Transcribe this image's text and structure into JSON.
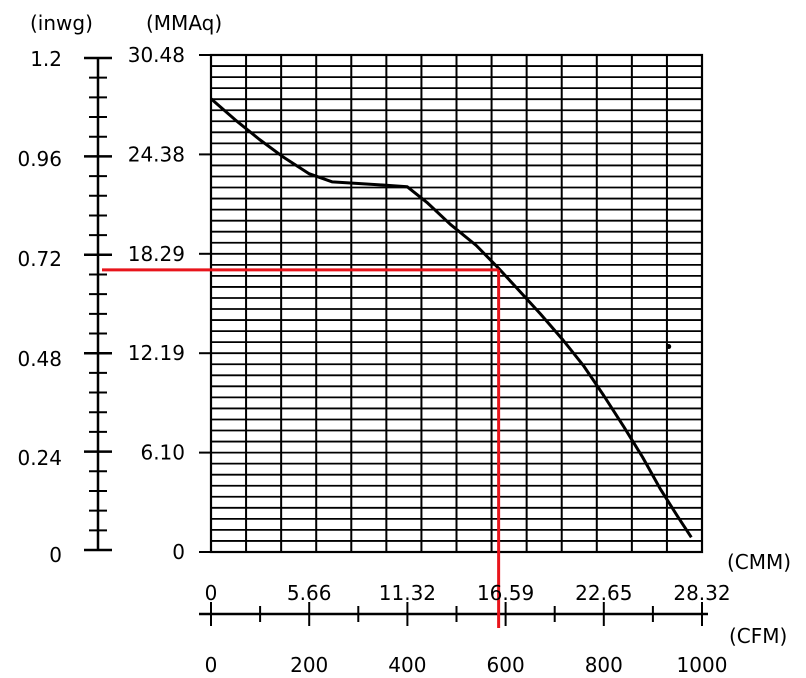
{
  "chart_data": {
    "type": "line",
    "title": "",
    "axes": {
      "y_primary": {
        "unit": "(MMAq)",
        "ticks": [
          "0",
          "6.10",
          "12.19",
          "18.29",
          "24.38",
          "30.48"
        ],
        "range": [
          0,
          30.48
        ]
      },
      "y_secondary": {
        "unit": "(inwg)",
        "ticks": [
          "0",
          "0.24",
          "0.48",
          "0.72",
          "0.96",
          "1.2"
        ],
        "range": [
          0,
          1.2
        ]
      },
      "x_primary": {
        "unit": "(CMM)",
        "ticks": [
          "0",
          "5.66",
          "11.32",
          "16.59",
          "22.65",
          "28.32"
        ],
        "range": [
          0,
          28.32
        ]
      },
      "x_secondary": {
        "unit": "(CFM)",
        "ticks": [
          "0",
          "200",
          "400",
          "600",
          "800",
          "1000"
        ],
        "range": [
          0,
          1000
        ]
      }
    },
    "grid": true,
    "series": [
      {
        "color": "#000000",
        "x": [
          0,
          1.4,
          2.8,
          4.2,
          5.66,
          7.0,
          8.5,
          10.0,
          11.32,
          12.5,
          13.8,
          15.3,
          16.59,
          17.8,
          19.0,
          20.3,
          21.5,
          22.65,
          23.8,
          24.9,
          25.9,
          26.9,
          27.7
        ],
        "y": [
          27.8,
          26.5,
          25.3,
          24.2,
          23.2,
          22.7,
          22.6,
          22.5,
          22.4,
          21.4,
          20.1,
          18.8,
          17.4,
          16.0,
          14.6,
          13.0,
          11.4,
          9.6,
          7.7,
          5.8,
          3.9,
          2.2,
          0.9
        ]
      }
    ],
    "reference_lines": {
      "color": "#e8141b",
      "x": 16.59,
      "y": 17.3
    },
    "stray_point": {
      "x": 26.4,
      "y": 12.6
    }
  }
}
